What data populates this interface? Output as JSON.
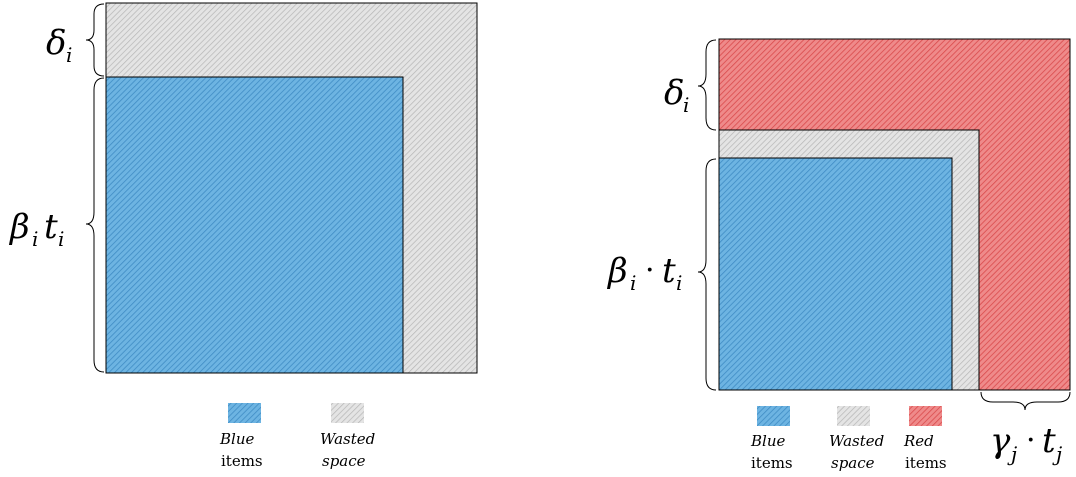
{
  "colors": {
    "blue": "#5aa9dc",
    "wasted": "#d6d6d6",
    "red": "#e8686a",
    "outline": "#000000"
  },
  "left_diagram": {
    "labels": {
      "delta": "δ",
      "delta_sub": "i",
      "beta": "β",
      "beta_sub": "i",
      "t": "t",
      "t_sub": "i"
    },
    "legend": [
      {
        "line1": "Blue",
        "line2": "items"
      },
      {
        "line1": "Wasted",
        "line2": "space"
      }
    ]
  },
  "right_diagram": {
    "labels": {
      "delta": "δ",
      "delta_sub": "i",
      "beta": "β",
      "beta_sub": "i",
      "dot": "·",
      "t": "t",
      "t_sub": "i",
      "gamma": "γ",
      "gamma_sub": "j",
      "t2": "t",
      "t2_sub": "j"
    },
    "legend": [
      {
        "line1": "Blue",
        "line2": "items"
      },
      {
        "line1": "Wasted",
        "line2": "space"
      },
      {
        "line1": "Red",
        "line2": "items"
      }
    ]
  }
}
